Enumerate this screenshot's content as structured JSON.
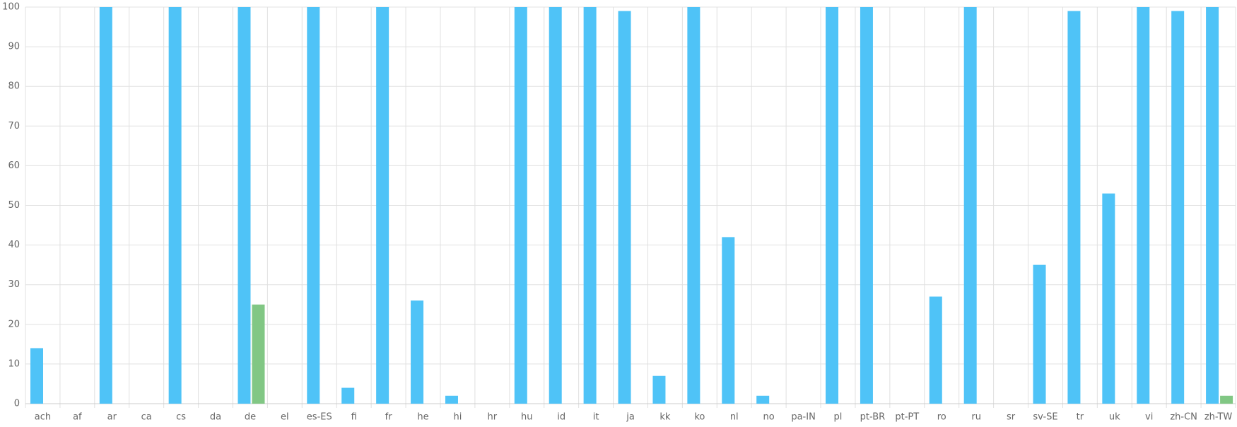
{
  "chart_data": {
    "type": "bar",
    "categories": [
      "ach",
      "af",
      "ar",
      "ca",
      "cs",
      "da",
      "de",
      "el",
      "es-ES",
      "fi",
      "fr",
      "he",
      "hi",
      "hr",
      "hu",
      "id",
      "it",
      "ja",
      "kk",
      "ko",
      "nl",
      "no",
      "pa-IN",
      "pl",
      "pt-BR",
      "pt-PT",
      "ro",
      "ru",
      "sr",
      "sv-SE",
      "tr",
      "uk",
      "vi",
      "zh-CN",
      "zh-TW"
    ],
    "series": [
      {
        "color": "#4fc3f7",
        "values": [
          14,
          0,
          100,
          0,
          100,
          0,
          100,
          0,
          100,
          4,
          100,
          26,
          2,
          0,
          100,
          100,
          100,
          99,
          7,
          100,
          42,
          2,
          0,
          100,
          100,
          0,
          27,
          100,
          0,
          35,
          99,
          53,
          100,
          99,
          100
        ]
      },
      {
        "color": "#81c784",
        "values": [
          0,
          0,
          0,
          0,
          0,
          0,
          25,
          0,
          0,
          0,
          0,
          0,
          0,
          0,
          0,
          0,
          0,
          0,
          0,
          0,
          0,
          0,
          0,
          0,
          0,
          0,
          0,
          0,
          0,
          0,
          0,
          0,
          0,
          0,
          2
        ]
      }
    ],
    "ylim": [
      0,
      100
    ],
    "yticks": [
      0,
      10,
      20,
      30,
      40,
      50,
      60,
      70,
      80,
      90,
      100
    ],
    "grid": true
  }
}
